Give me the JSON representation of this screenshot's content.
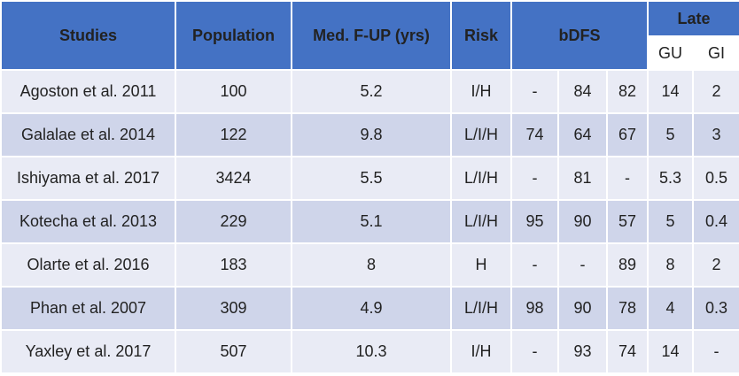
{
  "header": {
    "studies": "Studies",
    "population": "Population",
    "followup": "Med. F-UP (yrs)",
    "risk": "Risk",
    "bdfs": "bDFS",
    "late": "Late",
    "gu": "GU",
    "gi": "GI"
  },
  "rows": [
    {
      "study": "Agoston et al. 2011",
      "population": "100",
      "followup": "5.2",
      "risk": "I/H",
      "b1": "-",
      "b2": "84",
      "b3": "82",
      "gu": "14",
      "gi": "2"
    },
    {
      "study": "Galalae et al. 2014",
      "population": "122",
      "followup": "9.8",
      "risk": "L/I/H",
      "b1": "74",
      "b2": "64",
      "b3": "67",
      "gu": "5",
      "gi": "3"
    },
    {
      "study": "Ishiyama et al. 2017",
      "population": "3424",
      "followup": "5.5",
      "risk": "L/I/H",
      "b1": "-",
      "b2": "81",
      "b3": "-",
      "gu": "5.3",
      "gi": "0.5"
    },
    {
      "study": "Kotecha et al. 2013",
      "population": "229",
      "followup": "5.1",
      "risk": "L/I/H",
      "b1": "95",
      "b2": "90",
      "b3": "57",
      "gu": "5",
      "gi": "0.4"
    },
    {
      "study": "Olarte et al. 2016",
      "population": "183",
      "followup": "8",
      "risk": "H",
      "b1": "-",
      "b2": "-",
      "b3": "89",
      "gu": "8",
      "gi": "2"
    },
    {
      "study": "Phan et al. 2007",
      "population": "309",
      "followup": "4.9",
      "risk": "L/I/H",
      "b1": "98",
      "b2": "90",
      "b3": "78",
      "gu": "4",
      "gi": "0.3"
    },
    {
      "study": "Yaxley et al. 2017",
      "population": "507",
      "followup": "10.3",
      "risk": "I/H",
      "b1": "-",
      "b2": "93",
      "b3": "74",
      "gu": "14",
      "gi": "-"
    }
  ],
  "colors": {
    "header_bg": "#4472c4",
    "row_light": "#e9ebf5",
    "row_dark": "#cfd5ea"
  }
}
